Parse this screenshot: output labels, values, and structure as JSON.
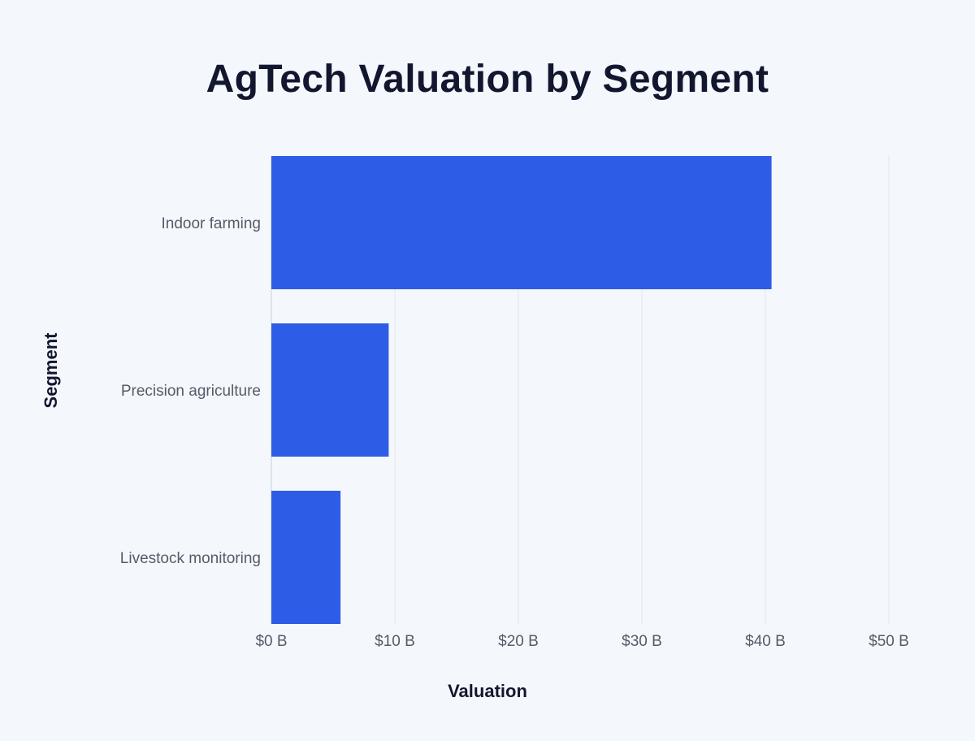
{
  "chart_data": {
    "type": "bar",
    "orientation": "horizontal",
    "title": "AgTech Valuation by Segment",
    "xlabel": "Valuation",
    "ylabel": "Segment",
    "categories": [
      "Indoor farming",
      "Precision agriculture",
      "Livestock monitoring"
    ],
    "values": [
      40.5,
      9.5,
      5.6
    ],
    "xlim": [
      0,
      50
    ],
    "x_ticks": [
      0,
      10,
      20,
      30,
      40,
      50
    ],
    "x_tick_labels": [
      "$0 B",
      "$10 B",
      "$20 B",
      "$30 B",
      "$40 B",
      "$50 B"
    ],
    "grid": "vertical",
    "legend": "none",
    "bar_color": "#2d5ce6",
    "grid_color": "#e2e6ec"
  }
}
